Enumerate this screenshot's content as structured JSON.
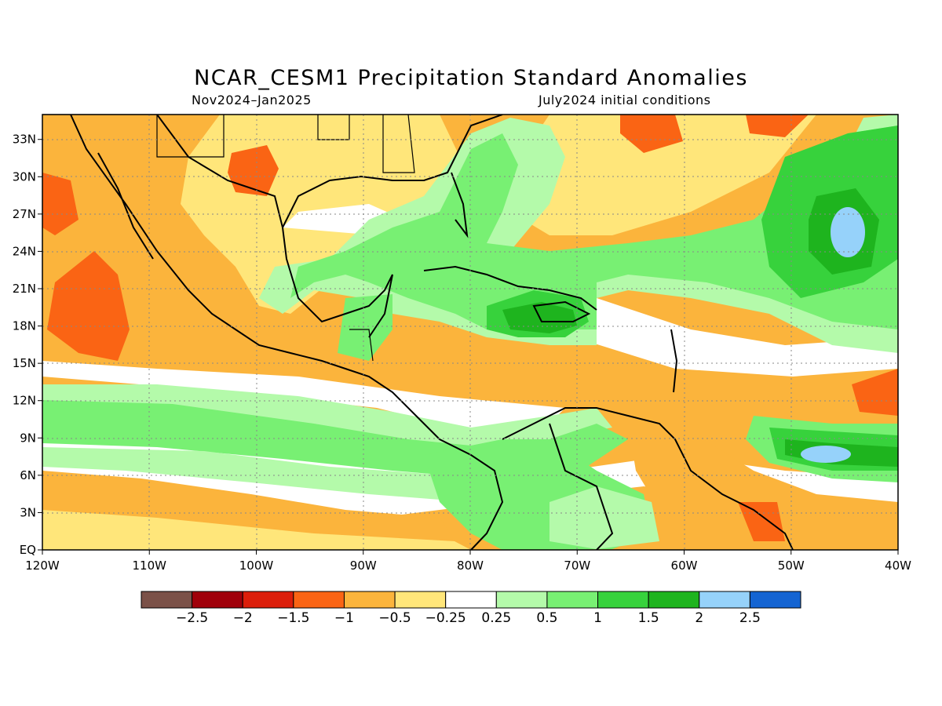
{
  "title": "NCAR_CESM1 Precipitation Standard Anomalies",
  "period": "Nov2024–Jan2025",
  "init": "July2024 initial conditions",
  "map": {
    "lon_range": [
      -120,
      -40
    ],
    "lat_range": [
      0,
      35
    ],
    "lon_labels": [
      "120W",
      "110W",
      "100W",
      "90W",
      "80W",
      "70W",
      "60W",
      "50W",
      "40W"
    ],
    "lat_labels": [
      "EQ",
      "3N",
      "6N",
      "9N",
      "12N",
      "15N",
      "18N",
      "21N",
      "24N",
      "27N",
      "30N",
      "33N"
    ]
  },
  "colorbar": {
    "labels": [
      "−2.5",
      "−2",
      "−1.5",
      "−1",
      "−0.5",
      "−0.25",
      "0.25",
      "0.5",
      "1",
      "1.5",
      "2",
      "2.5"
    ],
    "colors": [
      "#7b5148",
      "#a0000a",
      "#dc1e0a",
      "#fa6414",
      "#fbb43c",
      "#ffe67a",
      "#ffffff",
      "#b4faaa",
      "#78f073",
      "#37d23c",
      "#1eb41e",
      "#96d2fa",
      "#1464d2"
    ]
  }
}
